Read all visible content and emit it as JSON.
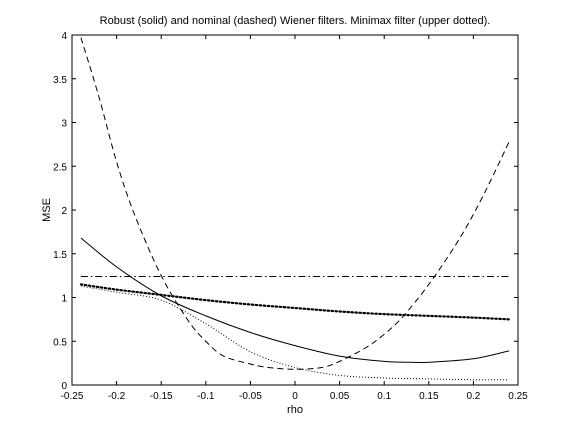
{
  "chart_data": {
    "type": "line",
    "title": "Robust (solid) and nominal (dashed) Wiener filters. Minimax filter (upper dotted).",
    "xlabel": "rho",
    "ylabel": "MSE",
    "xlim": [
      -0.25,
      0.25
    ],
    "ylim": [
      0,
      4
    ],
    "grid": false,
    "xticks": [
      -0.25,
      -0.2,
      -0.15,
      -0.1,
      -0.05,
      0,
      0.05,
      0.1,
      0.15,
      0.2,
      0.25
    ],
    "xtick_labels": [
      "-0.25",
      "-0.2",
      "-0.15",
      "-0.1",
      "-0.05",
      "0",
      "0.05",
      "0.1",
      "0.15",
      "0.2",
      "0.25"
    ],
    "yticks": [
      0,
      0.5,
      1,
      1.5,
      2,
      2.5,
      3,
      3.5,
      4
    ],
    "ytick_labels": [
      "0",
      "0.5",
      "1",
      "1.5",
      "2",
      "2.5",
      "3",
      "3.5",
      "4"
    ],
    "series": [
      {
        "style": "solid",
        "color": "#000000",
        "x": [
          -0.24,
          -0.2,
          -0.15,
          -0.1,
          -0.05,
          0,
          0.05,
          0.1,
          0.13,
          0.15,
          0.2,
          0.24
        ],
        "y": [
          1.68,
          1.35,
          1.02,
          0.79,
          0.6,
          0.45,
          0.33,
          0.27,
          0.26,
          0.26,
          0.3,
          0.39
        ]
      },
      {
        "style": "dashed",
        "color": "#000000",
        "x": [
          -0.24,
          -0.22,
          -0.2,
          -0.18,
          -0.15,
          -0.12,
          -0.1,
          -0.08,
          -0.05,
          -0.03,
          0,
          0.03,
          0.05,
          0.08,
          0.1,
          0.12,
          0.15,
          0.18,
          0.2,
          0.22,
          0.24
        ],
        "y": [
          3.97,
          3.3,
          2.55,
          1.95,
          1.25,
          0.74,
          0.5,
          0.33,
          0.24,
          0.2,
          0.18,
          0.2,
          0.27,
          0.43,
          0.58,
          0.77,
          1.15,
          1.6,
          1.95,
          2.35,
          2.78
        ]
      },
      {
        "style": "dotted",
        "color": "#000000",
        "x": [
          -0.24,
          -0.2,
          -0.15,
          -0.1,
          -0.05,
          0,
          0.05,
          0.1,
          0.15,
          0.2,
          0.24
        ],
        "y": [
          1.15,
          1.09,
          1.03,
          0.97,
          0.92,
          0.88,
          0.84,
          0.81,
          0.79,
          0.77,
          0.75
        ]
      },
      {
        "style": "fine-dotted",
        "color": "#000000",
        "x": [
          -0.24,
          -0.2,
          -0.15,
          -0.1,
          -0.05,
          0,
          0.05,
          0.1,
          0.15,
          0.2,
          0.24
        ],
        "y": [
          1.13,
          1.06,
          0.97,
          0.7,
          0.38,
          0.2,
          0.11,
          0.08,
          0.07,
          0.06,
          0.06
        ]
      },
      {
        "style": "dash-dot",
        "color": "#000000",
        "x": [
          -0.24,
          0.24
        ],
        "y": [
          1.24,
          1.24
        ]
      }
    ]
  }
}
